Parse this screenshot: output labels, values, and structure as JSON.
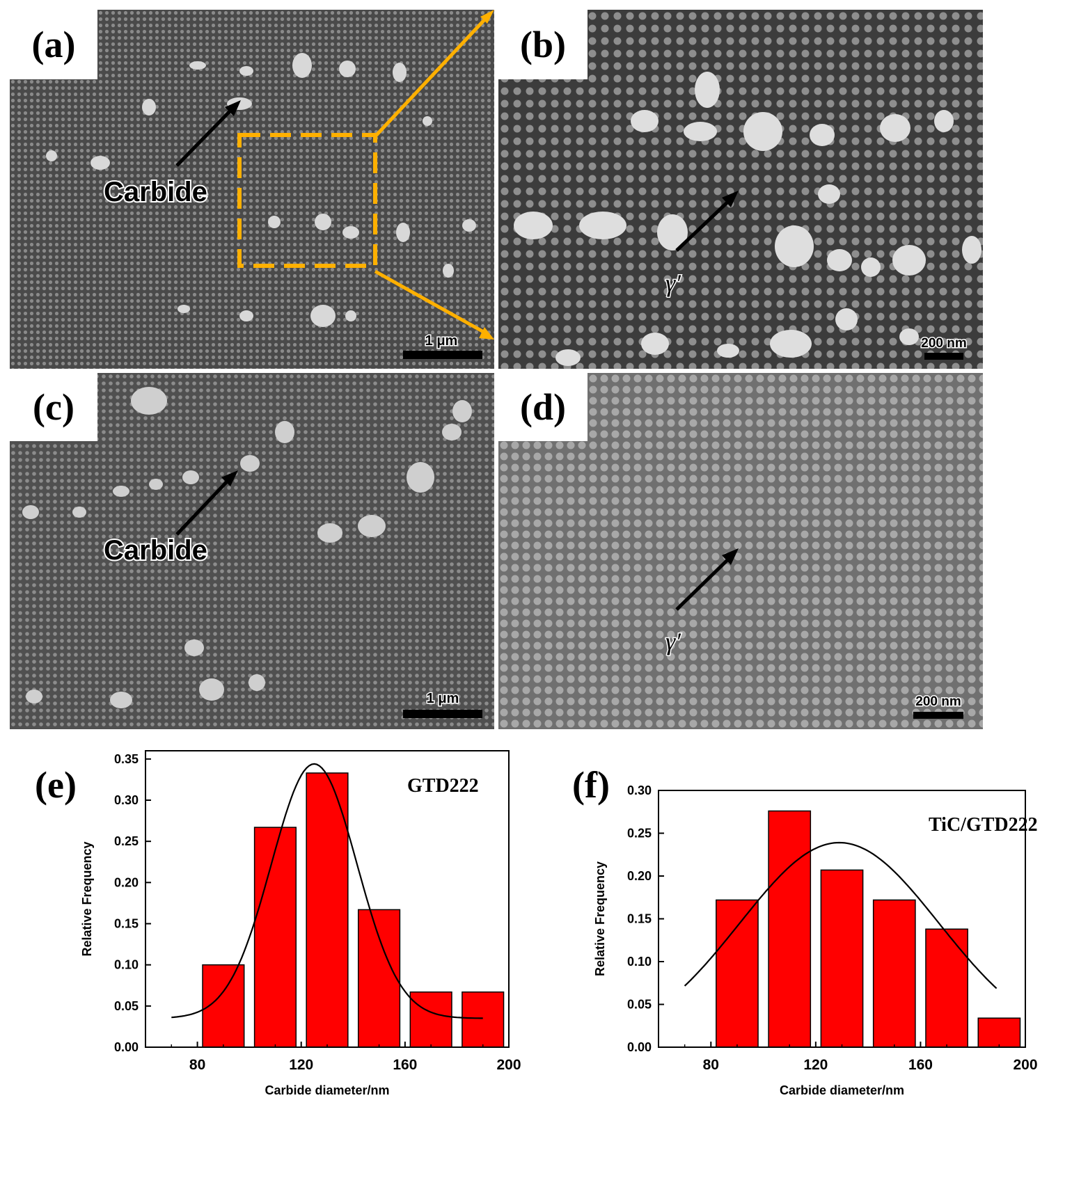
{
  "panels": {
    "a": {
      "label": "(a)",
      "annotation": "Carbide",
      "scale_bar": "1 μm"
    },
    "b": {
      "label": "(b)",
      "annotation": "γ′",
      "scale_bar": "200 nm"
    },
    "c": {
      "label": "(c)",
      "annotation": "Carbide",
      "scale_bar": "1 μm"
    },
    "d": {
      "label": "(d)",
      "annotation": "γ′",
      "scale_bar": "200 nm"
    },
    "e": {
      "label": "(e)"
    },
    "f": {
      "label": "(f)"
    }
  },
  "colors": {
    "bar": "#ff0000",
    "highlight": "#ffb000",
    "sem_background": "#4a4a4a"
  },
  "chart_data": [
    {
      "type": "bar",
      "panel": "e",
      "title": "GTD222",
      "xlabel": "Carbide diameter/nm",
      "ylabel": "Relative Frequency",
      "x": [
        90,
        110,
        130,
        150,
        170,
        190
      ],
      "values": [
        0.1,
        0.267,
        0.333,
        0.167,
        0.067,
        0.067
      ],
      "bin_width": 20,
      "xlim": [
        60,
        200
      ],
      "ylim": [
        0,
        0.36
      ],
      "xticks": [
        80,
        120,
        160,
        200
      ],
      "yticks": [
        0.0,
        0.05,
        0.1,
        0.15,
        0.2,
        0.25,
        0.3,
        0.35
      ],
      "fit_curve": {
        "type": "normal",
        "mean": 125,
        "sigma": 16.5,
        "peak": 0.344,
        "baseline": 0.035,
        "x_range": [
          70,
          190
        ]
      }
    },
    {
      "type": "bar",
      "panel": "f",
      "title": "TiC/GTD222",
      "xlabel": "Carbide diameter/nm",
      "ylabel": "Relative Frequency",
      "x": [
        90,
        110,
        130,
        150,
        170,
        190
      ],
      "values": [
        0.172,
        0.276,
        0.207,
        0.172,
        0.138,
        0.034
      ],
      "bin_width": 20,
      "xlim": [
        60,
        200
      ],
      "ylim": [
        0,
        0.3
      ],
      "xticks": [
        80,
        120,
        160,
        200
      ],
      "yticks": [
        0.0,
        0.05,
        0.1,
        0.15,
        0.2,
        0.25,
        0.3
      ],
      "fit_curve": {
        "type": "normal",
        "mean": 129,
        "sigma": 38,
        "peak": 0.239,
        "baseline": 0.0,
        "x_range": [
          70,
          189
        ]
      }
    }
  ]
}
